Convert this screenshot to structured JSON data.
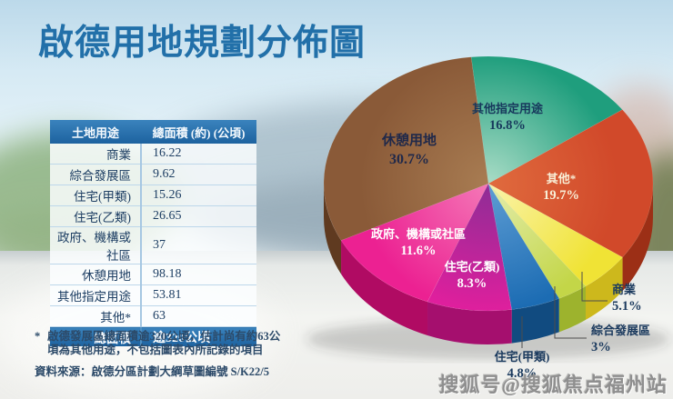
{
  "title": "啟德用地規劃分佈圖",
  "table": {
    "headers": [
      "土地用途",
      "總面積 (約) (公頃)"
    ],
    "rows": [
      {
        "use": "商業",
        "area": "16.22"
      },
      {
        "use": "綜合發展區",
        "area": "9.62"
      },
      {
        "use": "住宅(甲類)",
        "area": "15.26"
      },
      {
        "use": "住宅(乙類)",
        "area": "26.65"
      },
      {
        "use": "政府、機構或社區",
        "area": "37"
      },
      {
        "use": "休憩用地",
        "area": "98.18"
      },
      {
        "use": "其他指定用途",
        "area": "53.81"
      },
      {
        "use": "其他*",
        "area": "63"
      }
    ],
    "total": {
      "label": "總面積",
      "value": "逾320公頃"
    }
  },
  "footnote": {
    "marker": "*",
    "text": "啟德發展區總面積逾320公頃，估計尚有約63公頃為其他用途，不包括圖表內所記錄的項目"
  },
  "source": "資料來源：啟德分區計劃大綱草圖編號 S/K22/5",
  "watermark": "搜狐号@搜狐焦点福州站",
  "chart_data": {
    "type": "pie",
    "title": "啟德用地規劃分佈圖",
    "value_unit": "%",
    "style": "3d-pie",
    "start_angle_deg": -6,
    "clockwise": true,
    "slices": [
      {
        "label": "其他指定用途",
        "value": 16.8,
        "color": "#1f9e7d",
        "light": "#a9dcc6",
        "dark": "#0f7a5e"
      },
      {
        "label": "其他*",
        "value": 19.7,
        "color": "#d1492a",
        "light": "#e06b3e",
        "dark": "#9c2f16"
      },
      {
        "label": "商業",
        "value": 5.1,
        "color": "#f0e335",
        "light": "#faf3aa",
        "dark": "#cdb81c"
      },
      {
        "label": "綜合發展區",
        "value": 3,
        "color": "#c3d648",
        "light": "#e4edad",
        "dark": "#9db32d"
      },
      {
        "label": "住宅(甲類)",
        "value": 4.8,
        "color": "#1c6cb3",
        "light": "#5e9dd4",
        "dark": "#114b80"
      },
      {
        "label": "住宅(乙類)",
        "value": 8.3,
        "color": "#df1f9d",
        "light": "#8e2d96",
        "dark": "#a50f6e"
      },
      {
        "label": "政府、機構或社區",
        "value": 11.6,
        "color": "#ec2192",
        "light": "#f478b7",
        "dark": "#b00b63"
      },
      {
        "label": "休憩用地",
        "value": 30.7,
        "color": "#8a5a38",
        "light": "#a87c52",
        "dark": "#5f3a20"
      }
    ]
  }
}
